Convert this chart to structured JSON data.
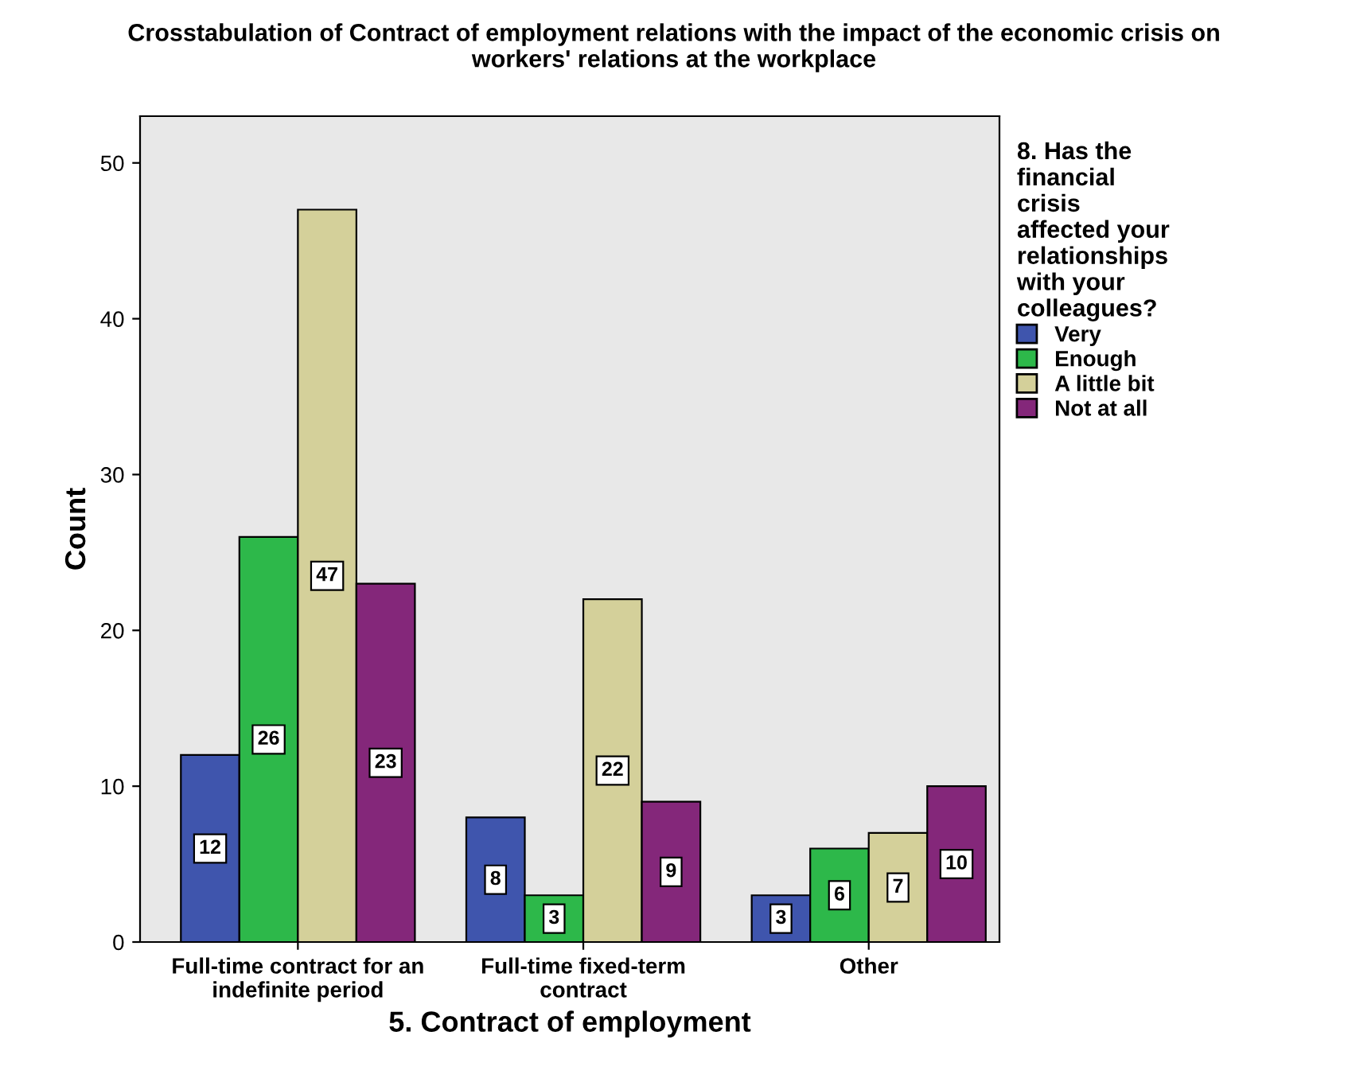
{
  "chart_data": {
    "type": "bar",
    "title": "Crosstabulation of Contract of employment relations with the impact of the economic crisis on\nworkers' relations at the workplace",
    "xlabel": "5. Contract of employment",
    "ylabel": "Count",
    "legend_title": "8. Has the\nfinancial\ncrisis\naffected your\nrelationships\nwith your\ncolleagues?",
    "categories": [
      "Full-time contract for an\nindefinite period",
      "Full-time fixed-term\ncontract",
      "Other"
    ],
    "series": [
      {
        "name": "Very",
        "color": "#3f55ad",
        "values": [
          12,
          8,
          3
        ]
      },
      {
        "name": "Enough",
        "color": "#2db84a",
        "values": [
          26,
          3,
          6
        ]
      },
      {
        "name": "A little bit",
        "color": "#d4d09a",
        "values": [
          47,
          22,
          7
        ]
      },
      {
        "name": "Not at all",
        "color": "#84277a",
        "values": [
          23,
          9,
          10
        ]
      }
    ],
    "ylim": [
      0,
      53
    ],
    "yticks": [
      0,
      10,
      20,
      30,
      40,
      50
    ],
    "grid": false,
    "legend": "right",
    "data_labels": true
  }
}
